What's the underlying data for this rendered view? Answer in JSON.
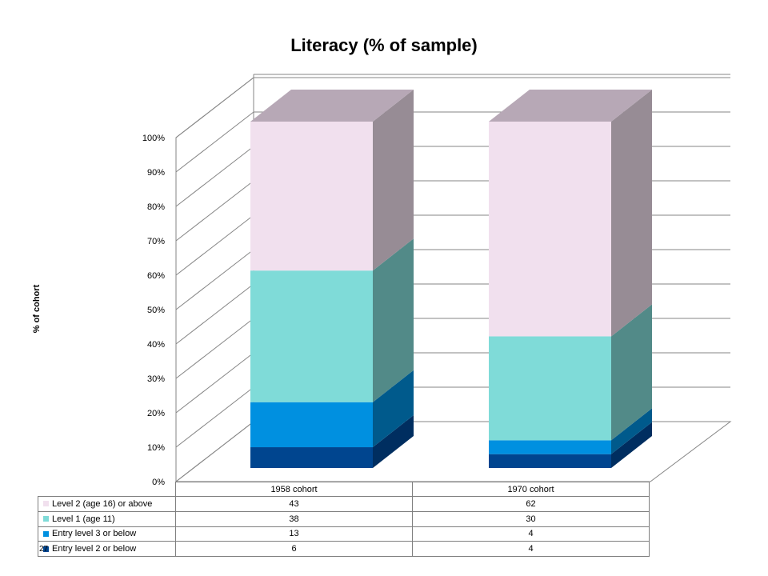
{
  "chart_data": {
    "type": "bar",
    "stacked": true,
    "three_d": true,
    "title": "Literacy (% of sample)",
    "ylabel": "% of cohort",
    "ylim": [
      0,
      100
    ],
    "yticks": [
      "0%",
      "10%",
      "20%",
      "30%",
      "40%",
      "50%",
      "60%",
      "70%",
      "80%",
      "90%",
      "100%"
    ],
    "grid": true,
    "categories": [
      "1958 cohort",
      "1970 cohort"
    ],
    "series": [
      {
        "name": "Entry level 2 or below",
        "values": [
          6,
          4
        ],
        "color": "#00458f",
        "color_side": "#002e60"
      },
      {
        "name": "Entry level 3 or below",
        "values": [
          13,
          4
        ],
        "color": "#0090e0",
        "color_side": "#005a8c"
      },
      {
        "name": "Level 1 (age 11)",
        "values": [
          38,
          30
        ],
        "color": "#7fdbd8",
        "color_side": "#528a88"
      },
      {
        "name": "Level 2 (age 16) or above",
        "values": [
          43,
          62
        ],
        "color": "#f1e0ee",
        "color_side": "#978c95",
        "color_top": "#b7a8b6"
      }
    ],
    "legend": "data-table"
  },
  "stray_mark": "27"
}
